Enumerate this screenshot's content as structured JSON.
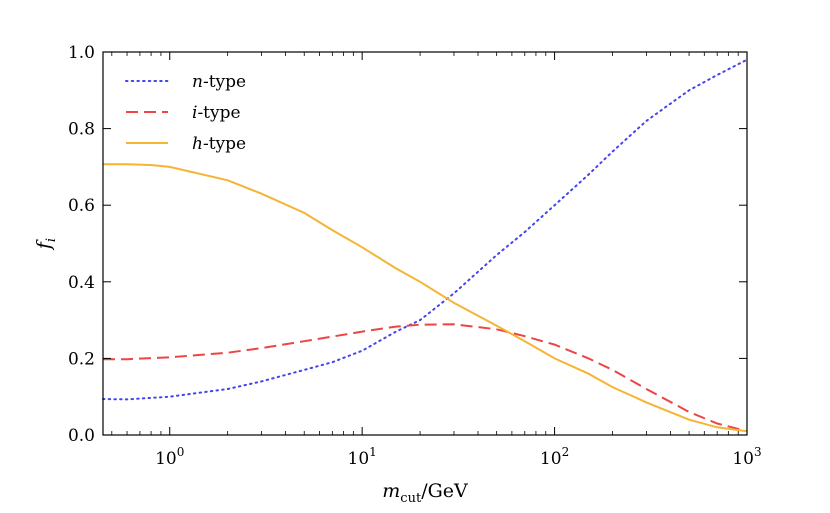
{
  "chart_data": {
    "type": "line",
    "title": "",
    "xlabel": "m_cut/GeV",
    "xlabel_parts": {
      "symbol": "m",
      "subscript": "cut",
      "unit": "/GeV"
    },
    "ylabel": "f_i",
    "ylabel_parts": {
      "symbol": "f",
      "subscript": "i"
    },
    "xscale": "log",
    "xlim": [
      0.45,
      1000
    ],
    "ylim": [
      0.0,
      1.0
    ],
    "x_ticks": [
      {
        "value": 1,
        "base": "10",
        "exp": "0"
      },
      {
        "value": 10,
        "base": "10",
        "exp": "1"
      },
      {
        "value": 100,
        "base": "10",
        "exp": "2"
      },
      {
        "value": 1000,
        "base": "10",
        "exp": "3"
      }
    ],
    "y_ticks": [
      "0.0",
      "0.2",
      "0.4",
      "0.6",
      "0.8",
      "1.0"
    ],
    "grid": false,
    "legend_position": "top-left",
    "series": [
      {
        "name": "n-type",
        "symbol": "n",
        "suffix": "-type",
        "color": "#4444ee",
        "style": "dotted",
        "x": [
          0.45,
          0.6,
          1,
          2,
          3,
          5,
          7,
          10,
          15,
          20,
          30,
          50,
          70,
          100,
          150,
          200,
          300,
          500,
          700,
          1000
        ],
        "y": [
          0.094,
          0.093,
          0.1,
          0.12,
          0.14,
          0.17,
          0.19,
          0.22,
          0.27,
          0.3,
          0.37,
          0.47,
          0.53,
          0.6,
          0.68,
          0.74,
          0.82,
          0.9,
          0.94,
          0.98
        ]
      },
      {
        "name": "i-type",
        "symbol": "i",
        "suffix": "-type",
        "color": "#ee4444",
        "style": "dashed",
        "x": [
          0.45,
          0.6,
          1,
          2,
          3,
          5,
          7,
          10,
          15,
          20,
          30,
          50,
          70,
          100,
          150,
          200,
          300,
          500,
          700,
          1000
        ],
        "y": [
          0.198,
          0.198,
          0.203,
          0.215,
          0.227,
          0.245,
          0.257,
          0.27,
          0.283,
          0.288,
          0.289,
          0.276,
          0.258,
          0.236,
          0.2,
          0.17,
          0.12,
          0.06,
          0.03,
          0.01
        ]
      },
      {
        "name": "h-type",
        "symbol": "h",
        "suffix": "-type",
        "color": "#f5b433",
        "style": "solid",
        "x": [
          0.45,
          0.6,
          0.8,
          1,
          2,
          3,
          5,
          7,
          10,
          15,
          20,
          30,
          50,
          70,
          100,
          150,
          200,
          300,
          500,
          700,
          1000
        ],
        "y": [
          0.707,
          0.707,
          0.705,
          0.7,
          0.665,
          0.63,
          0.58,
          0.535,
          0.49,
          0.435,
          0.4,
          0.345,
          0.285,
          0.245,
          0.2,
          0.16,
          0.125,
          0.085,
          0.04,
          0.02,
          0.01
        ]
      }
    ]
  }
}
